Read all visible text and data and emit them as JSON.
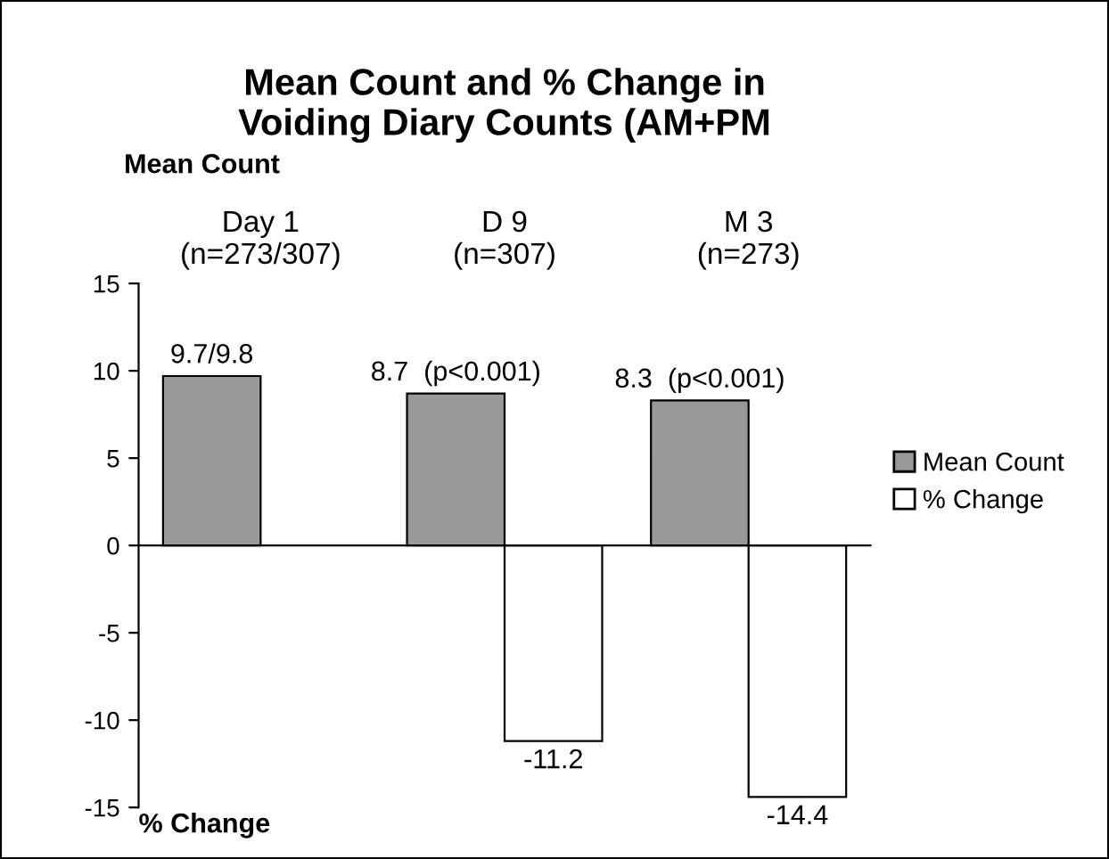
{
  "chart_data": {
    "type": "bar",
    "title": "Mean Count and % Change in\nVoiding Diary Counts (AM+PM",
    "ylabel": "Mean Count",
    "categories": [
      "Day 1\n(n=273/307)",
      "D 9\n(n=307)",
      "M 3\n(n=273)"
    ],
    "series": [
      {
        "name": "Mean Count",
        "color": "#999999",
        "values": [
          9.7,
          8.7,
          8.3
        ],
        "value_labels": [
          "9.7/9.8",
          "8.7  (p<0.001)",
          "8.3  (p<0.001)"
        ]
      },
      {
        "name": "% Change",
        "color": "#ffffff",
        "values": [
          null,
          -11.2,
          -14.4
        ],
        "value_labels": [
          null,
          "-11.2",
          "-14.4"
        ]
      }
    ],
    "ylim": [
      -15,
      15
    ],
    "yticks": [
      -15,
      -10,
      -5,
      0,
      5,
      10,
      15
    ],
    "legend": "right",
    "annotations": [
      "% Change"
    ]
  }
}
